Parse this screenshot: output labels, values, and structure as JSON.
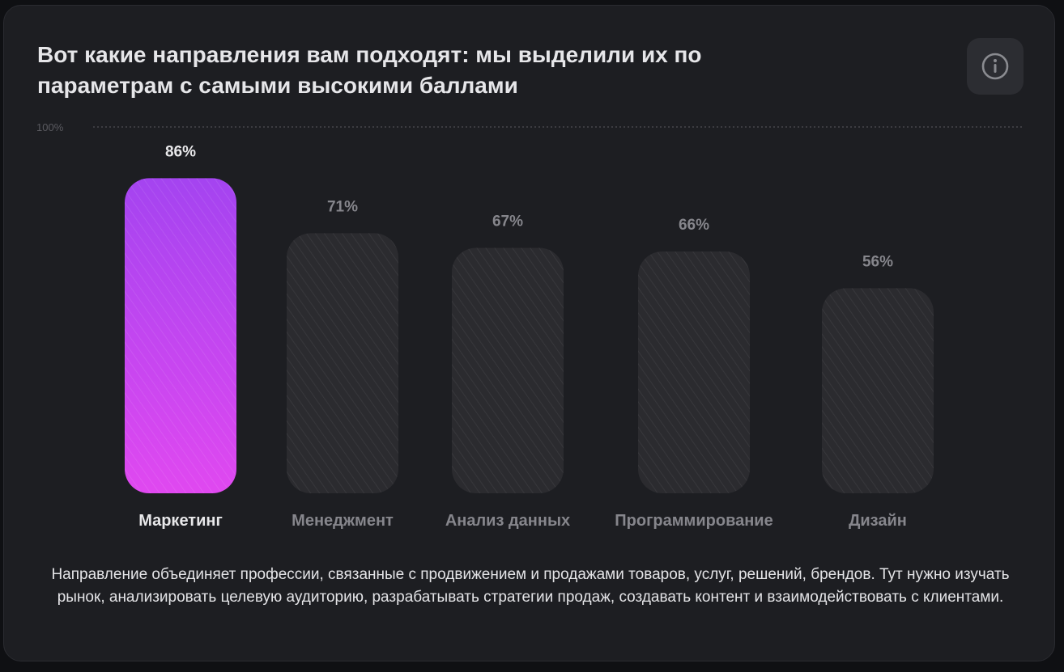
{
  "header": {
    "title": "Вот какие направления вам подходят: мы выделили их по параметрам с самыми высокими баллами",
    "info_icon": "info-circle-icon"
  },
  "chart_data": {
    "type": "bar",
    "categories": [
      "Маркетинг",
      "Менеджмент",
      "Анализ данных",
      "Программирование",
      "Дизайн"
    ],
    "values": [
      86,
      71,
      67,
      66,
      56
    ],
    "value_labels": [
      "86%",
      "71%",
      "67%",
      "66%",
      "56%"
    ],
    "reference_line_label": "100%",
    "ylim": [
      0,
      100
    ],
    "highlighted_index": 0,
    "colors": {
      "highlight_top": "#a444f0",
      "highlight_bottom": "#e048f0",
      "inactive_bar": "#2b2b2f",
      "hatch": "#3a3a3e",
      "active_text": "#e8e8ea",
      "inactive_text": "#86868c",
      "grid": "#5a5a60"
    },
    "grid": false
  },
  "description": "Направление объединяет профессии, связанные с продвижением и продажами товаров, услуг, решений, брендов. Тут нужно изучать рынок, анализировать целевую аудиторию, разрабатывать стратегии продаж, создавать контент и взаимодействовать с клиентами."
}
